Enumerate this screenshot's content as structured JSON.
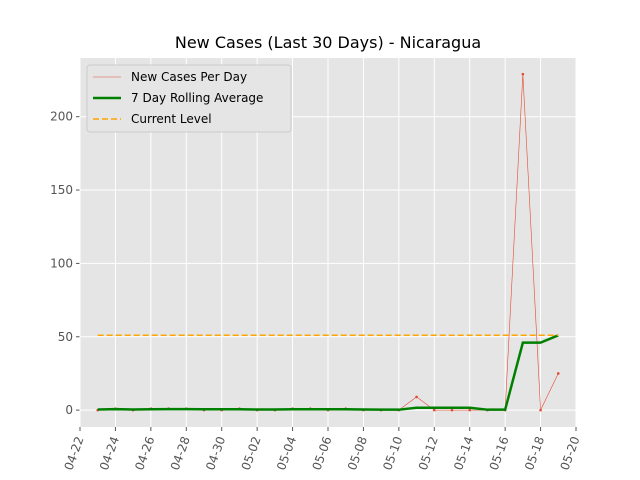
{
  "chart_data": {
    "type": "line",
    "title": "New Cases (Last 30 Days) - Nicaragua",
    "x": [
      "04-23",
      "04-24",
      "04-25",
      "04-26",
      "04-27",
      "04-28",
      "04-29",
      "04-30",
      "05-01",
      "05-02",
      "05-03",
      "05-04",
      "05-05",
      "05-06",
      "05-07",
      "05-08",
      "05-09",
      "05-10",
      "05-11",
      "05-12",
      "05-13",
      "05-14",
      "05-15",
      "05-16",
      "05-17",
      "05-18",
      "05-19"
    ],
    "series": [
      {
        "name": "New Cases Per Day",
        "color": "#e24a33",
        "style": "thin-markers",
        "values": [
          0,
          1,
          0,
          1,
          1,
          1,
          0,
          0,
          1,
          0,
          0,
          1,
          1,
          0,
          1,
          0,
          0,
          0,
          9,
          0,
          0,
          0,
          0,
          0,
          229,
          0,
          25
        ]
      },
      {
        "name": "7 Day Rolling Average",
        "color": "#008000",
        "style": "thick",
        "values": [
          0.4,
          0.7,
          0.4,
          0.6,
          0.7,
          0.7,
          0.6,
          0.6,
          0.6,
          0.4,
          0.4,
          0.6,
          0.6,
          0.6,
          0.6,
          0.4,
          0.3,
          0.3,
          1.6,
          1.6,
          1.6,
          1.6,
          0.3,
          0.3,
          46,
          46,
          51
        ]
      },
      {
        "name": "Current Level",
        "color": "#ffa500",
        "style": "dashed",
        "values": [
          51,
          51,
          51,
          51,
          51,
          51,
          51,
          51,
          51,
          51,
          51,
          51,
          51,
          51,
          51,
          51,
          51,
          51,
          51,
          51,
          51,
          51,
          51,
          51,
          51,
          51,
          51
        ]
      }
    ],
    "xlim": [
      "04-22",
      "05-20"
    ],
    "xticks": [
      "04-22",
      "04-24",
      "04-26",
      "04-28",
      "04-30",
      "05-02",
      "05-04",
      "05-06",
      "05-08",
      "05-10",
      "05-12",
      "05-14",
      "05-16",
      "05-18",
      "05-20"
    ],
    "ylim": [
      -11.5,
      240
    ],
    "yticks": [
      0,
      50,
      100,
      150,
      200
    ],
    "grid": true,
    "legend": "upper left"
  }
}
